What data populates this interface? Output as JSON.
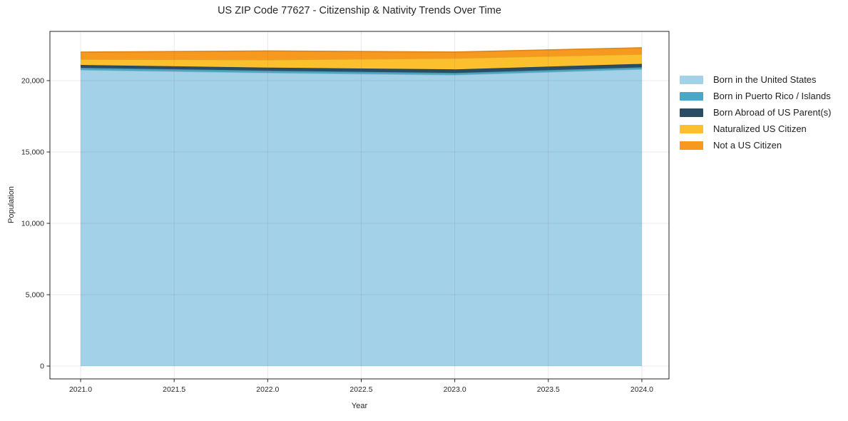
{
  "chart_data": {
    "type": "area",
    "stacked": true,
    "title": "US ZIP Code 77627 - Citizenship & Nativity Trends Over Time",
    "xlabel": "Year",
    "ylabel": "Population",
    "x": [
      2021,
      2022,
      2023,
      2024
    ],
    "series": [
      {
        "name": "Born in the United States",
        "color": "#a3d1e8",
        "values": [
          20750,
          20550,
          20400,
          20800
        ]
      },
      {
        "name": "Born in Puerto Rico / Islands",
        "color": "#4ba7c3",
        "values": [
          150,
          150,
          140,
          135
        ]
      },
      {
        "name": "Born Abroad of US Parent(s)",
        "color": "#2a4d63",
        "values": [
          200,
          215,
          250,
          240
        ]
      },
      {
        "name": "Naturalized US Citizen",
        "color": "#fcc02e",
        "values": [
          400,
          550,
          780,
          680
        ]
      },
      {
        "name": "Not a US Citizen",
        "color": "#f7981f",
        "values": [
          500,
          615,
          435,
          450
        ]
      }
    ],
    "xticks": {
      "values": [
        2021.0,
        2021.5,
        2022.0,
        2022.5,
        2023.0,
        2023.5,
        2024.0
      ],
      "labels": [
        "2021.0",
        "2021.5",
        "2022.0",
        "2022.5",
        "2023.0",
        "2023.5",
        "2024.0"
      ]
    },
    "yticks": {
      "values": [
        0,
        5000,
        10000,
        15000,
        20000
      ],
      "labels": [
        "0",
        "5,000",
        "10,000",
        "15,000",
        "20,000"
      ]
    },
    "xlim": [
      2020.836,
      2024.145
    ],
    "ylim": [
      -900,
      23450
    ],
    "grid": true,
    "legend_position": "center right"
  }
}
